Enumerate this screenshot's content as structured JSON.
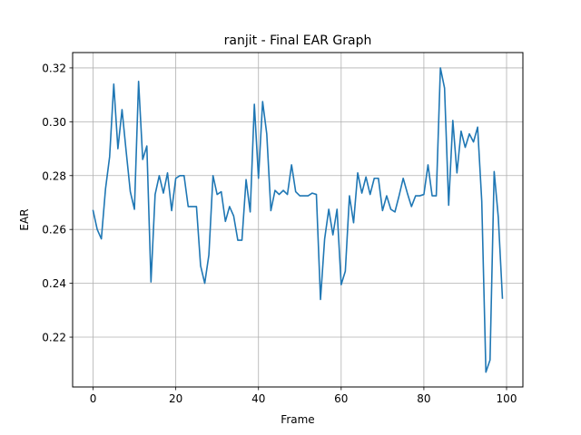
{
  "chart_data": {
    "type": "line",
    "title": "ranjit - Final EAR Graph",
    "xlabel": "Frame",
    "ylabel": "EAR",
    "xlim": [
      -4.95,
      103.95
    ],
    "ylim": [
      0.2015,
      0.3257
    ],
    "xticks": [
      0,
      20,
      40,
      60,
      80,
      100
    ],
    "yticks": [
      0.22,
      0.24,
      0.26,
      0.28,
      0.3,
      0.32
    ],
    "ytick_labels": [
      "0.22",
      "0.24",
      "0.26",
      "0.28",
      "0.30",
      "0.32"
    ],
    "grid": true,
    "line_color": "#1f77b4",
    "series": [
      {
        "x": [
          0,
          1,
          2,
          3,
          4,
          5,
          6,
          7,
          8,
          9,
          10,
          11,
          12,
          13,
          14,
          15,
          16,
          17,
          18,
          19,
          20,
          21,
          22,
          23,
          24,
          25,
          26,
          27,
          28,
          29,
          30,
          31,
          32,
          33,
          34,
          35,
          36,
          37,
          38,
          39,
          40,
          41,
          42,
          43,
          44,
          45,
          46,
          47,
          48,
          49,
          50,
          51,
          52,
          53,
          54,
          55,
          56,
          57,
          58,
          59,
          60,
          61,
          62,
          63,
          64,
          65,
          66,
          67,
          68,
          69,
          70,
          71,
          72,
          73,
          74,
          75,
          76,
          77,
          78,
          79,
          80,
          81,
          82,
          83,
          84,
          85,
          86,
          87,
          88,
          89,
          90,
          91,
          92,
          93,
          94,
          95,
          96,
          97,
          98,
          99
        ],
        "y": [
          0.267,
          0.26,
          0.2565,
          0.275,
          0.287,
          0.314,
          0.29,
          0.3045,
          0.289,
          0.274,
          0.2675,
          0.315,
          0.286,
          0.291,
          0.2405,
          0.273,
          0.28,
          0.2735,
          0.281,
          0.267,
          0.279,
          0.28,
          0.28,
          0.2685,
          0.2685,
          0.2685,
          0.2465,
          0.24,
          0.2505,
          0.28,
          0.273,
          0.274,
          0.263,
          0.2685,
          0.265,
          0.256,
          0.256,
          0.2785,
          0.2665,
          0.3065,
          0.279,
          0.3075,
          0.2955,
          0.267,
          0.2745,
          0.273,
          0.2745,
          0.273,
          0.284,
          0.274,
          0.2725,
          0.2725,
          0.2725,
          0.2735,
          0.273,
          0.234,
          0.2565,
          0.2675,
          0.258,
          0.2675,
          0.2395,
          0.2445,
          0.2725,
          0.2625,
          0.281,
          0.2735,
          0.2795,
          0.273,
          0.279,
          0.279,
          0.267,
          0.2725,
          0.2675,
          0.2665,
          0.2725,
          0.279,
          0.2735,
          0.2685,
          0.2725,
          0.2725,
          0.273,
          0.284,
          0.2725,
          0.2725,
          0.32,
          0.3125,
          0.269,
          0.3005,
          0.281,
          0.2965,
          0.2905,
          0.2955,
          0.2925,
          0.298,
          0.2705,
          0.207,
          0.2115,
          0.2815,
          0.2645,
          0.2345
        ]
      }
    ]
  }
}
